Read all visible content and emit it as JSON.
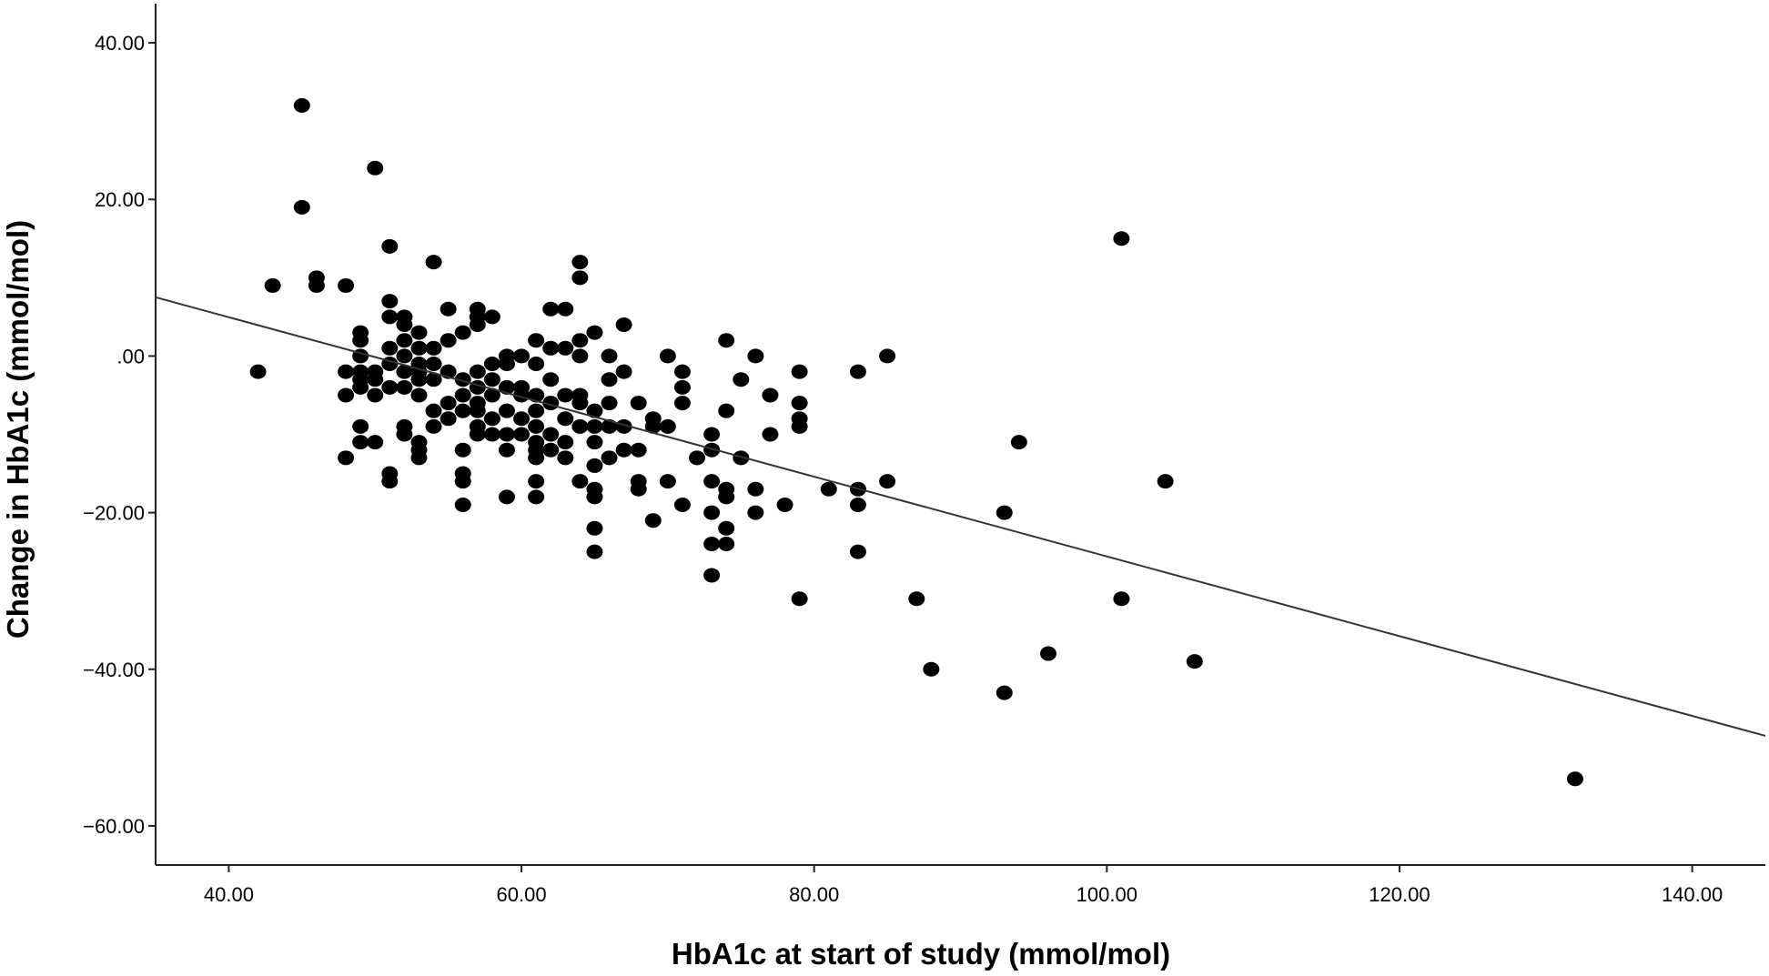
{
  "chart_data": {
    "type": "scatter",
    "title": "",
    "xlabel": "HbA1c at start of study (mmol/mol)",
    "ylabel": "Change in HbA1c (mmol/mol)",
    "xlim": [
      35,
      145
    ],
    "ylim": [
      -65,
      45
    ],
    "xticks": [
      40,
      60,
      80,
      100,
      120,
      140
    ],
    "xtick_labels": [
      "40.00",
      "60.00",
      "80.00",
      "100.00",
      "120.00",
      "140.00"
    ],
    "yticks": [
      40,
      20,
      0,
      -20,
      -40,
      -60
    ],
    "ytick_labels": [
      "40.00",
      "20.00",
      ".00",
      "−20.00",
      "−40.00",
      "−60.00"
    ],
    "grid": false,
    "legend": "none",
    "marker_color": "#000000",
    "line_color": "#333333",
    "fit_line": {
      "x": [
        35,
        145
      ],
      "y": [
        7.5,
        -48.5
      ]
    },
    "points": [
      [
        42,
        -2
      ],
      [
        43,
        9
      ],
      [
        45,
        32
      ],
      [
        45,
        19
      ],
      [
        46,
        10
      ],
      [
        46,
        9
      ],
      [
        48,
        9
      ],
      [
        48,
        -2
      ],
      [
        48,
        -5
      ],
      [
        48,
        -13
      ],
      [
        49,
        3
      ],
      [
        49,
        2
      ],
      [
        49,
        0
      ],
      [
        49,
        -2
      ],
      [
        49,
        -3
      ],
      [
        49,
        -4
      ],
      [
        49,
        -9
      ],
      [
        49,
        -11
      ],
      [
        50,
        24
      ],
      [
        50,
        -2
      ],
      [
        50,
        -3
      ],
      [
        50,
        -5
      ],
      [
        50,
        -11
      ],
      [
        51,
        14
      ],
      [
        51,
        7
      ],
      [
        51,
        5
      ],
      [
        51,
        1
      ],
      [
        51,
        -1
      ],
      [
        51,
        -4
      ],
      [
        51,
        -15
      ],
      [
        51,
        -16
      ],
      [
        52,
        5
      ],
      [
        52,
        4
      ],
      [
        52,
        2
      ],
      [
        52,
        0
      ],
      [
        52,
        -2
      ],
      [
        52,
        -4
      ],
      [
        52,
        -9
      ],
      [
        52,
        -10
      ],
      [
        53,
        3
      ],
      [
        53,
        1
      ],
      [
        53,
        -1
      ],
      [
        53,
        -2
      ],
      [
        53,
        -3
      ],
      [
        53,
        -5
      ],
      [
        53,
        -11
      ],
      [
        53,
        -12
      ],
      [
        53,
        -13
      ],
      [
        54,
        12
      ],
      [
        54,
        1
      ],
      [
        54,
        -1
      ],
      [
        54,
        -3
      ],
      [
        54,
        -7
      ],
      [
        54,
        -9
      ],
      [
        55,
        6
      ],
      [
        55,
        2
      ],
      [
        55,
        -2
      ],
      [
        55,
        -6
      ],
      [
        55,
        -8
      ],
      [
        56,
        3
      ],
      [
        56,
        -3
      ],
      [
        56,
        -5
      ],
      [
        56,
        -7
      ],
      [
        56,
        -12
      ],
      [
        56,
        -15
      ],
      [
        56,
        -16
      ],
      [
        56,
        -19
      ],
      [
        57,
        6
      ],
      [
        57,
        5
      ],
      [
        57,
        4
      ],
      [
        57,
        -2
      ],
      [
        57,
        -4
      ],
      [
        57,
        -6
      ],
      [
        57,
        -7
      ],
      [
        57,
        -9
      ],
      [
        57,
        -10
      ],
      [
        58,
        5
      ],
      [
        58,
        -1
      ],
      [
        58,
        -3
      ],
      [
        58,
        -5
      ],
      [
        58,
        -8
      ],
      [
        58,
        -10
      ],
      [
        59,
        0
      ],
      [
        59,
        -1
      ],
      [
        59,
        -4
      ],
      [
        59,
        -7
      ],
      [
        59,
        -10
      ],
      [
        59,
        -12
      ],
      [
        59,
        -18
      ],
      [
        60,
        0
      ],
      [
        60,
        -4
      ],
      [
        60,
        -5
      ],
      [
        60,
        -8
      ],
      [
        60,
        -10
      ],
      [
        61,
        2
      ],
      [
        61,
        -1
      ],
      [
        61,
        -5
      ],
      [
        61,
        -7
      ],
      [
        61,
        -9
      ],
      [
        61,
        -11
      ],
      [
        61,
        -12
      ],
      [
        61,
        -13
      ],
      [
        61,
        -16
      ],
      [
        61,
        -18
      ],
      [
        62,
        6
      ],
      [
        62,
        1
      ],
      [
        62,
        -3
      ],
      [
        62,
        -6
      ],
      [
        62,
        -10
      ],
      [
        62,
        -12
      ],
      [
        63,
        6
      ],
      [
        63,
        1
      ],
      [
        63,
        -5
      ],
      [
        63,
        -8
      ],
      [
        63,
        -11
      ],
      [
        63,
        -13
      ],
      [
        64,
        12
      ],
      [
        64,
        10
      ],
      [
        64,
        2
      ],
      [
        64,
        0
      ],
      [
        64,
        -5
      ],
      [
        64,
        -6
      ],
      [
        64,
        -9
      ],
      [
        64,
        -16
      ],
      [
        65,
        3
      ],
      [
        65,
        -7
      ],
      [
        65,
        -9
      ],
      [
        65,
        -11
      ],
      [
        65,
        -14
      ],
      [
        65,
        -17
      ],
      [
        65,
        -18
      ],
      [
        65,
        -22
      ],
      [
        65,
        -25
      ],
      [
        66,
        0
      ],
      [
        66,
        -3
      ],
      [
        66,
        -6
      ],
      [
        66,
        -9
      ],
      [
        66,
        -13
      ],
      [
        67,
        4
      ],
      [
        67,
        -2
      ],
      [
        67,
        -9
      ],
      [
        67,
        -12
      ],
      [
        68,
        -6
      ],
      [
        68,
        -12
      ],
      [
        68,
        -16
      ],
      [
        68,
        -17
      ],
      [
        69,
        -8
      ],
      [
        69,
        -9
      ],
      [
        69,
        -21
      ],
      [
        70,
        0
      ],
      [
        70,
        -9
      ],
      [
        70,
        -16
      ],
      [
        71,
        -2
      ],
      [
        71,
        -4
      ],
      [
        71,
        -6
      ],
      [
        71,
        -19
      ],
      [
        72,
        -13
      ],
      [
        73,
        -10
      ],
      [
        73,
        -12
      ],
      [
        73,
        -16
      ],
      [
        73,
        -20
      ],
      [
        73,
        -24
      ],
      [
        73,
        -28
      ],
      [
        74,
        2
      ],
      [
        74,
        -7
      ],
      [
        74,
        -17
      ],
      [
        74,
        -18
      ],
      [
        74,
        -22
      ],
      [
        74,
        -24
      ],
      [
        75,
        -3
      ],
      [
        75,
        -13
      ],
      [
        76,
        0
      ],
      [
        76,
        -17
      ],
      [
        76,
        -20
      ],
      [
        77,
        -5
      ],
      [
        77,
        -10
      ],
      [
        78,
        -19
      ],
      [
        79,
        -2
      ],
      [
        79,
        -6
      ],
      [
        79,
        -8
      ],
      [
        79,
        -9
      ],
      [
        79,
        -31
      ],
      [
        81,
        -17
      ],
      [
        83,
        -2
      ],
      [
        83,
        -17
      ],
      [
        83,
        -19
      ],
      [
        83,
        -25
      ],
      [
        85,
        0
      ],
      [
        85,
        -16
      ],
      [
        87,
        -31
      ],
      [
        88,
        -40
      ],
      [
        93,
        -20
      ],
      [
        93,
        -43
      ],
      [
        94,
        -11
      ],
      [
        96,
        -38
      ],
      [
        101,
        15
      ],
      [
        101,
        -31
      ],
      [
        104,
        -16
      ],
      [
        106,
        -39
      ],
      [
        132,
        -54
      ]
    ]
  }
}
